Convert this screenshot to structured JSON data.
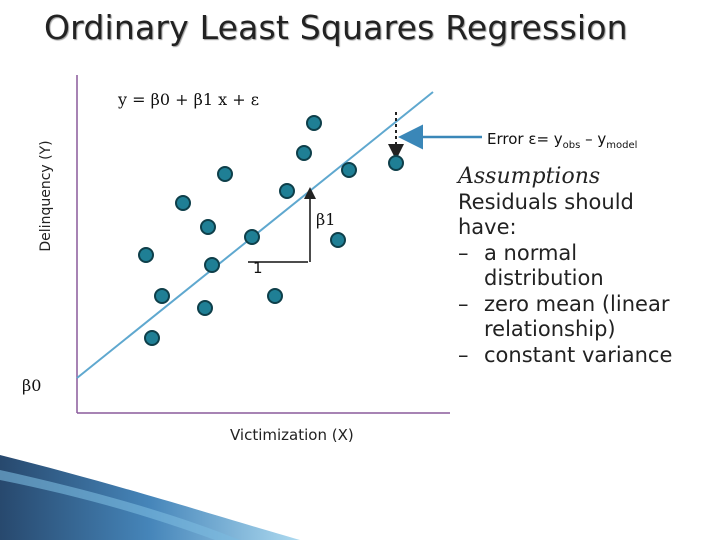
{
  "title": "Ordinary Least Squares Regression",
  "equation": "y = β0 + β1 x + ε",
  "axes": {
    "y_label": "Delinquency (Y)",
    "x_label": "Victimization (X)"
  },
  "labels": {
    "beta0": "β0",
    "beta1": "β1",
    "run": "1"
  },
  "error_label": {
    "prefix": "Error ε= y",
    "obs_sub": "obs",
    "middle": " – y",
    "model_sub": "model"
  },
  "assumptions": {
    "heading": "Assumptions",
    "intro": "Residuals should have:",
    "items": [
      "a normal distribution",
      "zero mean (linear relationship)",
      "constant variance"
    ]
  },
  "colors": {
    "point_fill": "#1f7f95",
    "point_stroke": "#0e3f4a",
    "regression_line": "#5fa8cf",
    "axis": "#8a5a9b",
    "arrow": "#3a87b8",
    "corner_dark": "#1c3f66",
    "corner_light": "#a9d8ef"
  }
}
